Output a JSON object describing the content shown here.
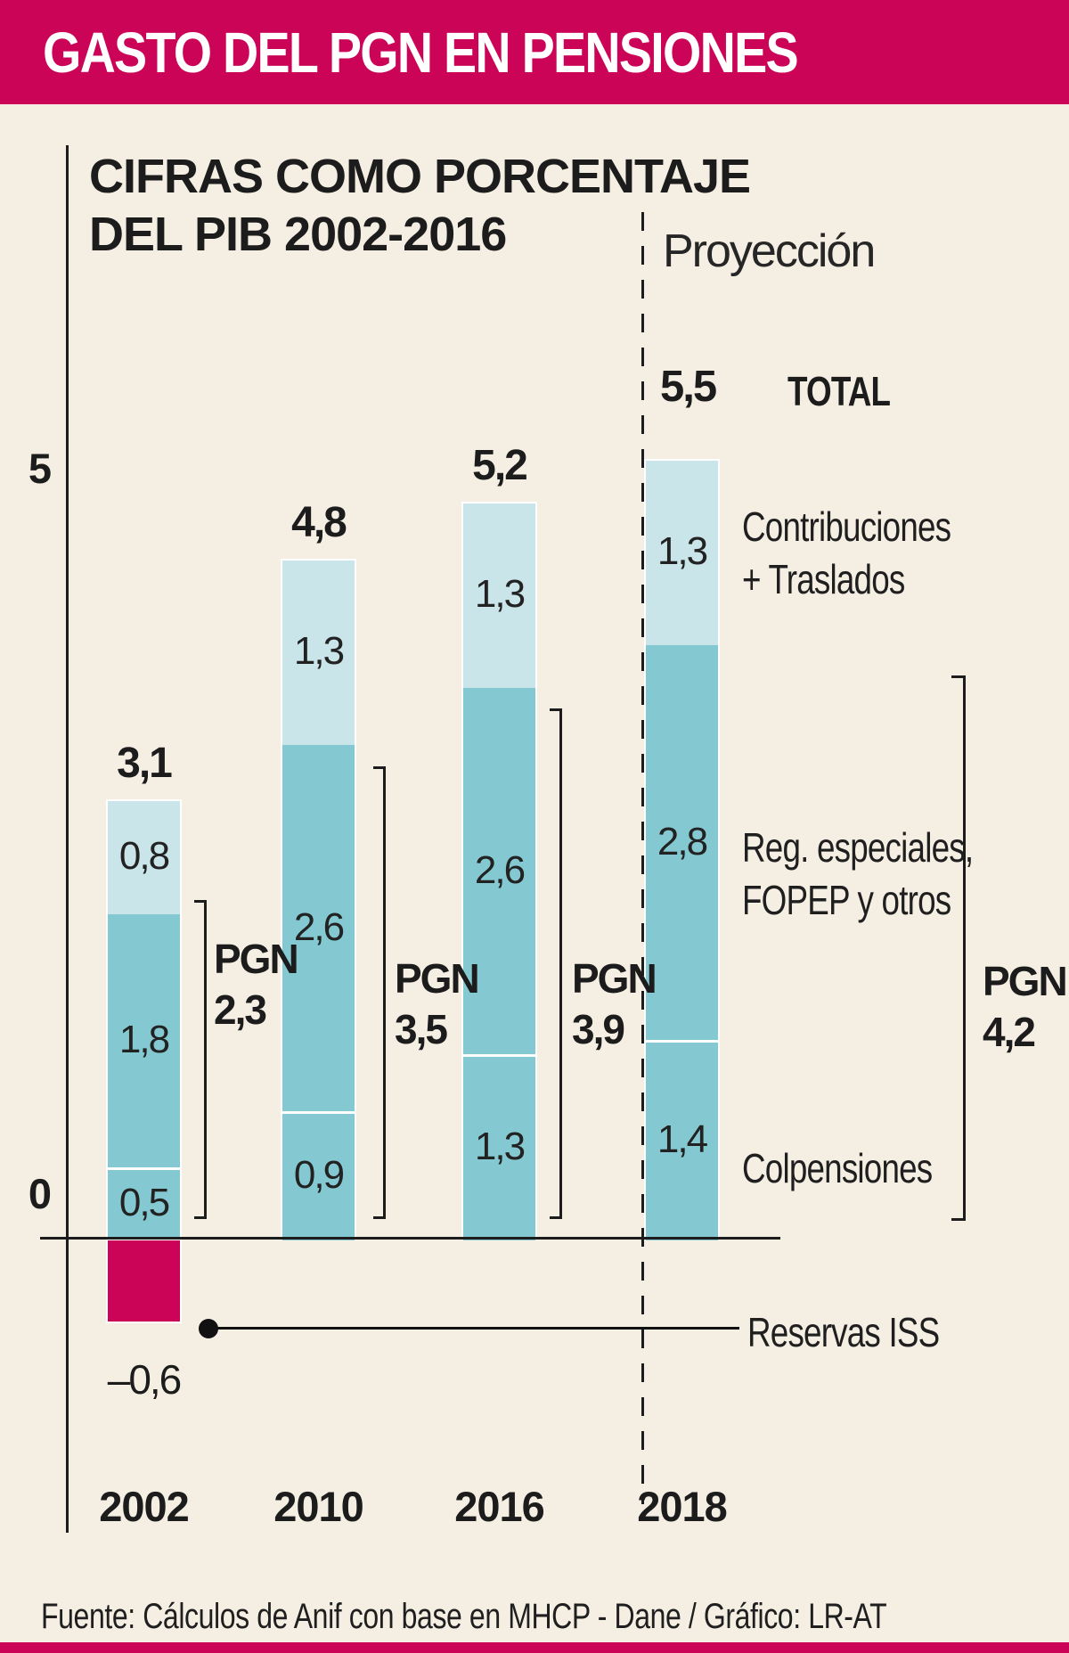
{
  "header": {
    "title": "GASTO DEL PGN EN PENSIONES"
  },
  "chart": {
    "subtitle_line1": "CIFRAS COMO PORCENTAJE",
    "subtitle_line2": "DEL PIB 2002-2016",
    "projection_label": "Proyección",
    "total_word": "TOTAL",
    "pgn_word": "PGN",
    "y_tick_top": "5",
    "y_tick_zero": "0"
  },
  "chart_data": {
    "type": "bar",
    "stacked": true,
    "title": "Gasto del PGN en pensiones, cifras como porcentaje del PIB 2002-2016",
    "categories": [
      "2002",
      "2010",
      "2016",
      "2018"
    ],
    "projection_categories": [
      "2018"
    ],
    "series": [
      {
        "name": "Colpensiones",
        "values": [
          0.5,
          0.9,
          1.3,
          1.4
        ]
      },
      {
        "name": "Reg. especiales, FOPEP y otros",
        "values": [
          1.8,
          2.6,
          2.6,
          2.8
        ]
      },
      {
        "name": "Contribuciones + Traslados",
        "values": [
          0.8,
          1.3,
          1.3,
          1.3
        ]
      }
    ],
    "negative_series": {
      "name": "Reservas ISS",
      "values": [
        -0.6,
        null,
        null,
        null
      ]
    },
    "totals": [
      3.1,
      4.8,
      5.2,
      5.5
    ],
    "pgn_totals": [
      2.3,
      3.5,
      3.9,
      4.2
    ],
    "ylabel": "% del PIB",
    "ylim": [
      -1,
      6
    ],
    "y_ticks_shown": [
      0,
      5
    ],
    "grid": false,
    "legend_position": "right",
    "decimal_separator": ","
  },
  "labels": {
    "contribuciones": [
      "Contribuciones",
      "+ Traslados"
    ],
    "reg_especiales": [
      "Reg. especiales,",
      "FOPEP y otros"
    ],
    "colpensiones": "Colpensiones",
    "reservas": "Reservas ISS"
  },
  "footer": {
    "source": "Fuente: Cálculos de Anif con base en MHCP - Dane / Gráfico: LR-AT"
  },
  "colors": {
    "magenta": "#cb0457",
    "teal": "#84c9d2",
    "light_blue": "#c9e5ea",
    "background": "#f5eee3",
    "ink": "#1c1c1c"
  }
}
